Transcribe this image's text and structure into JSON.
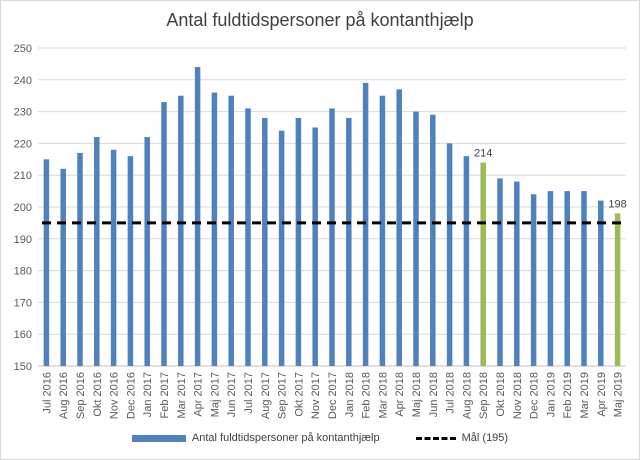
{
  "chart_data": {
    "type": "bar",
    "title": "Antal fuldtidspersoner på kontanthjælp",
    "xlabel": "",
    "ylabel": "",
    "ylim": [
      150,
      250
    ],
    "yticks": [
      150,
      160,
      170,
      180,
      190,
      200,
      210,
      220,
      230,
      240,
      250
    ],
    "grid": true,
    "legend_position": "bottom",
    "categories": [
      "Jul 2016",
      "Aug 2016",
      "Sep 2016",
      "Okt 2016",
      "Nov 2016",
      "Dec 2016",
      "Jan 2017",
      "Feb 2017",
      "Mar 2017",
      "Apr 2017",
      "Maj 2017",
      "Jun 2017",
      "Jul 2017",
      "Aug 2017",
      "Sep 2017",
      "Okt 2017",
      "Nov 2017",
      "Dec 2017",
      "Jan 2018",
      "Feb 2018",
      "Mar 2018",
      "Apr 2018",
      "Maj 2018",
      "Jun 2018",
      "Jul 2018",
      "Aug 2018",
      "Sep 2018",
      "Okt 2018",
      "Nov 2018",
      "Dec 2018",
      "Jan 2019",
      "Feb 2019",
      "Mar 2019",
      "Apr 2019",
      "Maj 2019"
    ],
    "series": [
      {
        "name": "Antal fuldtidspersoner på kontanthjælp",
        "color": "#4f81bd",
        "highlight_color": "#9bbb59",
        "highlight_indices": [
          26,
          34
        ],
        "values": [
          215,
          212,
          217,
          222,
          218,
          216,
          222,
          233,
          235,
          244,
          236,
          235,
          231,
          228,
          224,
          228,
          225,
          231,
          228,
          239,
          235,
          237,
          230,
          229,
          220,
          216,
          214,
          209,
          208,
          204,
          205,
          205,
          205,
          202,
          198
        ]
      },
      {
        "name": "Mål (195)",
        "type": "line",
        "style": "dashed",
        "color": "#000000",
        "value": 195
      }
    ],
    "data_labels": [
      {
        "index": 26,
        "text": "214"
      },
      {
        "index": 34,
        "text": "198"
      }
    ]
  }
}
